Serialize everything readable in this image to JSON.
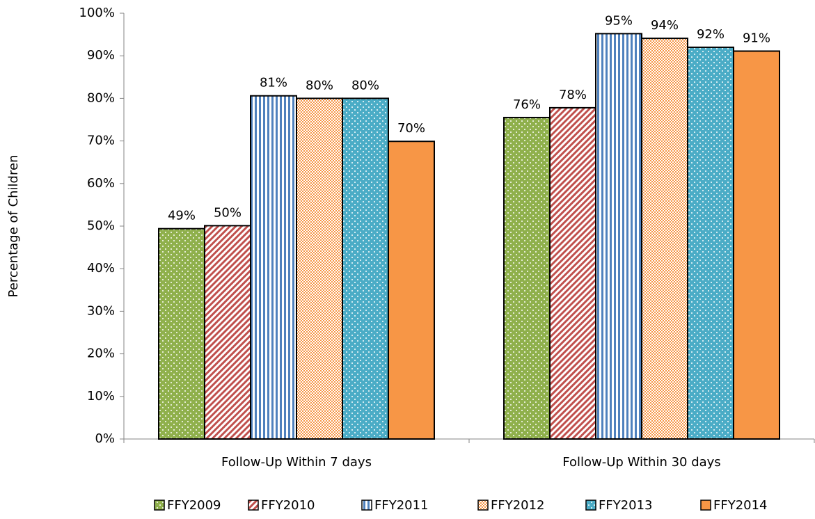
{
  "chart_data": {
    "type": "bar",
    "y_label": "Percentage of Children",
    "categories": [
      "Follow-Up Within 7 days",
      "Follow-Up Within 30 days"
    ],
    "series": [
      {
        "name": "FFY2009",
        "color": "#8fb04c",
        "pattern": "dots",
        "values": [
          49.4,
          75.5
        ],
        "value_labels": [
          "49%",
          "76%"
        ]
      },
      {
        "name": "FFY2010",
        "color": "#c0504d",
        "pattern": "diagonal",
        "values": [
          50.1,
          77.8
        ],
        "value_labels": [
          "50%",
          "78%"
        ]
      },
      {
        "name": "FFY2011",
        "color": "#4f81bd",
        "pattern": "vertical",
        "values": [
          80.6,
          95.2
        ],
        "value_labels": [
          "81%",
          "95%"
        ]
      },
      {
        "name": "FFY2012",
        "color": "#f79646",
        "pattern": "checker",
        "values": [
          80.0,
          94.1
        ],
        "value_labels": [
          "80%",
          "94%"
        ]
      },
      {
        "name": "FFY2013",
        "color": "#4bacc6",
        "pattern": "dots",
        "values": [
          80.0,
          92.0
        ],
        "value_labels": [
          "80%",
          "92%"
        ]
      },
      {
        "name": "FFY2014",
        "color": "#f79646",
        "pattern": "solid",
        "values": [
          69.9,
          91.1
        ],
        "value_labels": [
          "70%",
          "91%"
        ]
      }
    ],
    "ylim": [
      0,
      100
    ],
    "yticks": [
      {
        "value": 0,
        "label": "0%"
      },
      {
        "value": 10,
        "label": "10%"
      },
      {
        "value": 20,
        "label": "20%"
      },
      {
        "value": 30,
        "label": "30%"
      },
      {
        "value": 40,
        "label": "40%"
      },
      {
        "value": 50,
        "label": "50%"
      },
      {
        "value": 60,
        "label": "60%"
      },
      {
        "value": 70,
        "label": "70%"
      },
      {
        "value": 80,
        "label": "80%"
      },
      {
        "value": 90,
        "label": "90%"
      },
      {
        "value": 100,
        "label": "100%"
      }
    ],
    "grid": false,
    "legend": "bottom"
  }
}
